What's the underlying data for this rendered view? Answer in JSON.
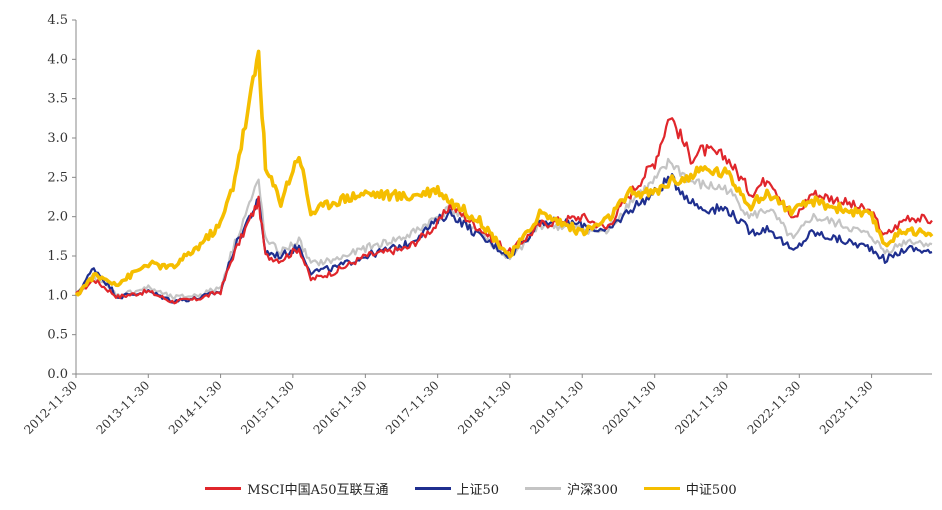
{
  "chart_data": {
    "type": "line",
    "title": "",
    "xlabel": "",
    "ylabel": "",
    "ylim": [
      0,
      4.5
    ],
    "y_ticks": [
      "0.0",
      "0.5",
      "1.0",
      "1.5",
      "2.0",
      "2.5",
      "3.0",
      "3.5",
      "4.0",
      "4.5"
    ],
    "x_ticks": [
      "2012-11-30",
      "2013-11-30",
      "2014-11-30",
      "2015-11-30",
      "2016-11-30",
      "2017-11-30",
      "2018-11-30",
      "2019-11-30",
      "2020-11-30",
      "2021-11-30",
      "2022-11-30",
      "2023-11-30"
    ],
    "x_range": [
      "2012-11-30",
      "2024-09-30"
    ],
    "grid": false,
    "legend_position": "bottom",
    "series": [
      {
        "name": "MSCI中国A50互联互通",
        "color": "#e0262b",
        "x": [
          "2012-11-30",
          "2013-02-28",
          "2013-06-30",
          "2013-11-30",
          "2014-03-31",
          "2014-07-31",
          "2014-11-30",
          "2015-01-31",
          "2015-04-15",
          "2015-06-10",
          "2015-07-15",
          "2015-09-30",
          "2015-12-31",
          "2016-02-29",
          "2016-06-30",
          "2016-11-30",
          "2017-06-30",
          "2017-11-30",
          "2018-01-31",
          "2018-06-30",
          "2018-11-30",
          "2019-02-28",
          "2019-04-30",
          "2019-11-30",
          "2020-03-31",
          "2020-07-31",
          "2020-11-30",
          "2021-02-15",
          "2021-05-31",
          "2021-07-31",
          "2021-11-30",
          "2022-03-31",
          "2022-06-30",
          "2022-10-31",
          "2023-01-31",
          "2023-06-30",
          "2023-11-30",
          "2024-02-05",
          "2024-05-31",
          "2024-09-30"
        ],
        "values": [
          1.0,
          1.2,
          0.98,
          1.05,
          0.92,
          0.95,
          1.05,
          1.5,
          1.9,
          2.2,
          1.5,
          1.45,
          1.6,
          1.2,
          1.3,
          1.5,
          1.6,
          1.9,
          2.15,
          1.85,
          1.55,
          1.75,
          1.9,
          2.0,
          1.85,
          2.3,
          2.7,
          3.3,
          2.75,
          2.85,
          2.75,
          2.3,
          2.5,
          1.95,
          2.3,
          2.2,
          2.05,
          1.75,
          2.0,
          1.95
        ]
      },
      {
        "name": "上证50",
        "color": "#1f2f8f",
        "x": [
          "2012-11-30",
          "2013-02-28",
          "2013-06-30",
          "2013-11-30",
          "2014-03-31",
          "2014-07-31",
          "2014-11-30",
          "2015-01-31",
          "2015-04-15",
          "2015-06-10",
          "2015-07-15",
          "2015-09-30",
          "2015-12-31",
          "2016-02-29",
          "2016-06-30",
          "2016-11-30",
          "2017-06-30",
          "2017-11-30",
          "2018-01-31",
          "2018-06-30",
          "2018-11-30",
          "2019-02-28",
          "2019-04-30",
          "2019-11-30",
          "2020-03-31",
          "2020-07-31",
          "2020-11-30",
          "2021-02-15",
          "2021-05-31",
          "2021-07-31",
          "2021-11-30",
          "2022-03-31",
          "2022-06-30",
          "2022-10-31",
          "2023-01-31",
          "2023-06-30",
          "2023-11-30",
          "2024-02-05",
          "2024-05-31",
          "2024-09-30"
        ],
        "values": [
          1.0,
          1.35,
          0.98,
          1.05,
          0.93,
          0.96,
          1.05,
          1.55,
          1.95,
          2.2,
          1.55,
          1.5,
          1.62,
          1.3,
          1.35,
          1.5,
          1.65,
          1.95,
          2.05,
          1.75,
          1.5,
          1.75,
          1.95,
          1.9,
          1.8,
          2.1,
          2.3,
          2.5,
          2.2,
          2.1,
          2.1,
          1.8,
          1.85,
          1.55,
          1.8,
          1.7,
          1.6,
          1.45,
          1.6,
          1.55
        ]
      },
      {
        "name": "沪深300",
        "color": "#c4c4c4",
        "x": [
          "2012-11-30",
          "2013-02-28",
          "2013-06-30",
          "2013-11-30",
          "2014-03-31",
          "2014-07-31",
          "2014-11-30",
          "2015-01-31",
          "2015-04-15",
          "2015-06-10",
          "2015-07-15",
          "2015-09-30",
          "2015-12-31",
          "2016-02-29",
          "2016-06-30",
          "2016-11-30",
          "2017-06-30",
          "2017-11-30",
          "2018-01-31",
          "2018-06-30",
          "2018-11-30",
          "2019-02-28",
          "2019-04-30",
          "2019-11-30",
          "2020-03-31",
          "2020-07-31",
          "2020-11-30",
          "2021-02-15",
          "2021-05-31",
          "2021-07-31",
          "2021-11-30",
          "2022-03-31",
          "2022-06-30",
          "2022-10-31",
          "2023-01-31",
          "2023-06-30",
          "2023-11-30",
          "2024-02-05",
          "2024-05-31",
          "2024-09-30"
        ],
        "values": [
          1.0,
          1.25,
          1.0,
          1.1,
          0.97,
          1.0,
          1.1,
          1.6,
          2.1,
          2.45,
          1.7,
          1.55,
          1.7,
          1.4,
          1.45,
          1.6,
          1.75,
          2.0,
          2.1,
          1.8,
          1.45,
          1.7,
          1.9,
          1.85,
          1.8,
          2.2,
          2.45,
          2.7,
          2.45,
          2.4,
          2.35,
          2.0,
          2.1,
          1.7,
          2.0,
          1.9,
          1.75,
          1.55,
          1.7,
          1.65
        ]
      },
      {
        "name": "中证500",
        "color": "#f5be00",
        "x": [
          "2012-11-30",
          "2013-02-28",
          "2013-06-30",
          "2013-11-30",
          "2014-03-31",
          "2014-07-31",
          "2014-11-30",
          "2015-01-31",
          "2015-04-15",
          "2015-06-10",
          "2015-07-15",
          "2015-09-30",
          "2015-12-31",
          "2016-02-29",
          "2016-06-30",
          "2016-11-30",
          "2017-06-30",
          "2017-11-30",
          "2018-01-31",
          "2018-06-30",
          "2018-11-30",
          "2019-02-28",
          "2019-04-30",
          "2019-11-30",
          "2020-03-31",
          "2020-07-31",
          "2020-11-30",
          "2021-02-15",
          "2021-05-31",
          "2021-07-31",
          "2021-11-30",
          "2022-03-31",
          "2022-06-30",
          "2022-10-31",
          "2023-01-31",
          "2023-06-30",
          "2023-11-30",
          "2024-02-05",
          "2024-05-31",
          "2024-09-30"
        ],
        "values": [
          1.0,
          1.25,
          1.15,
          1.4,
          1.35,
          1.6,
          1.9,
          2.4,
          3.3,
          4.1,
          2.6,
          2.2,
          2.8,
          2.05,
          2.2,
          2.3,
          2.25,
          2.35,
          2.2,
          1.95,
          1.5,
          1.8,
          2.05,
          1.8,
          1.95,
          2.3,
          2.3,
          2.45,
          2.5,
          2.6,
          2.55,
          2.15,
          2.3,
          2.05,
          2.2,
          2.1,
          2.0,
          1.65,
          1.85,
          1.75
        ]
      }
    ]
  }
}
